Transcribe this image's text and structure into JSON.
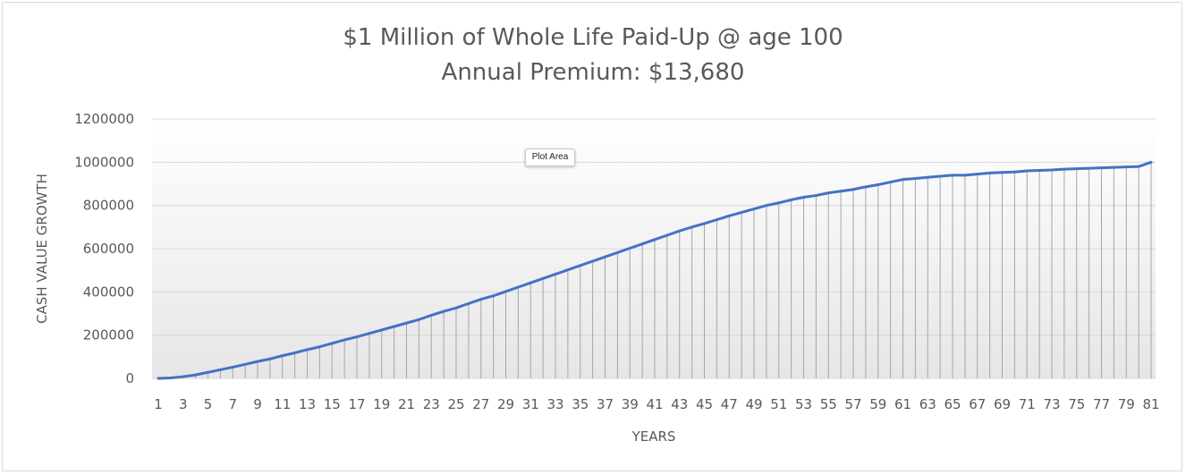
{
  "chart_data": {
    "type": "area",
    "title": "$1 Million of Whole Life Paid-Up @ age 100",
    "subtitle": "Annual Premium: $13,680",
    "xlabel": "YEARS",
    "ylabel": "CASH VALUE GROWTH",
    "ylim": [
      0,
      1200000
    ],
    "yticks": [
      "0",
      "200000",
      "400000",
      "600000",
      "800000",
      "1000000",
      "1200000"
    ],
    "grid": true,
    "legend": "none",
    "line_color": "#4472c4",
    "x": [
      1,
      2,
      3,
      4,
      5,
      6,
      7,
      8,
      9,
      10,
      11,
      12,
      13,
      14,
      15,
      16,
      17,
      18,
      19,
      20,
      21,
      22,
      23,
      24,
      25,
      26,
      27,
      28,
      29,
      30,
      31,
      32,
      33,
      34,
      35,
      36,
      37,
      38,
      39,
      40,
      41,
      42,
      43,
      44,
      45,
      46,
      47,
      48,
      49,
      50,
      51,
      52,
      53,
      54,
      55,
      56,
      57,
      58,
      59,
      60,
      61,
      62,
      63,
      64,
      65,
      66,
      67,
      68,
      69,
      70,
      71,
      72,
      73,
      74,
      75,
      76,
      77,
      78,
      79,
      80,
      81
    ],
    "values": [
      0,
      2000,
      8000,
      16000,
      28000,
      40000,
      52000,
      65000,
      78000,
      90000,
      105000,
      118000,
      133000,
      146000,
      162000,
      178000,
      192000,
      208000,
      224000,
      240000,
      256000,
      272000,
      292000,
      310000,
      326000,
      346000,
      366000,
      382000,
      402000,
      422000,
      442000,
      462000,
      482000,
      502000,
      522000,
      542000,
      562000,
      582000,
      602000,
      622000,
      642000,
      662000,
      682000,
      700000,
      716000,
      734000,
      752000,
      768000,
      784000,
      800000,
      812000,
      826000,
      838000,
      846000,
      858000,
      866000,
      874000,
      886000,
      896000,
      908000,
      920000,
      925000,
      930000,
      935000,
      940000,
      940000,
      945000,
      950000,
      953000,
      955000,
      960000,
      962000,
      964000,
      968000,
      970000,
      972000,
      974000,
      976000,
      978000,
      980000,
      1000000
    ]
  },
  "tooltip": {
    "text": "Plot Area"
  }
}
